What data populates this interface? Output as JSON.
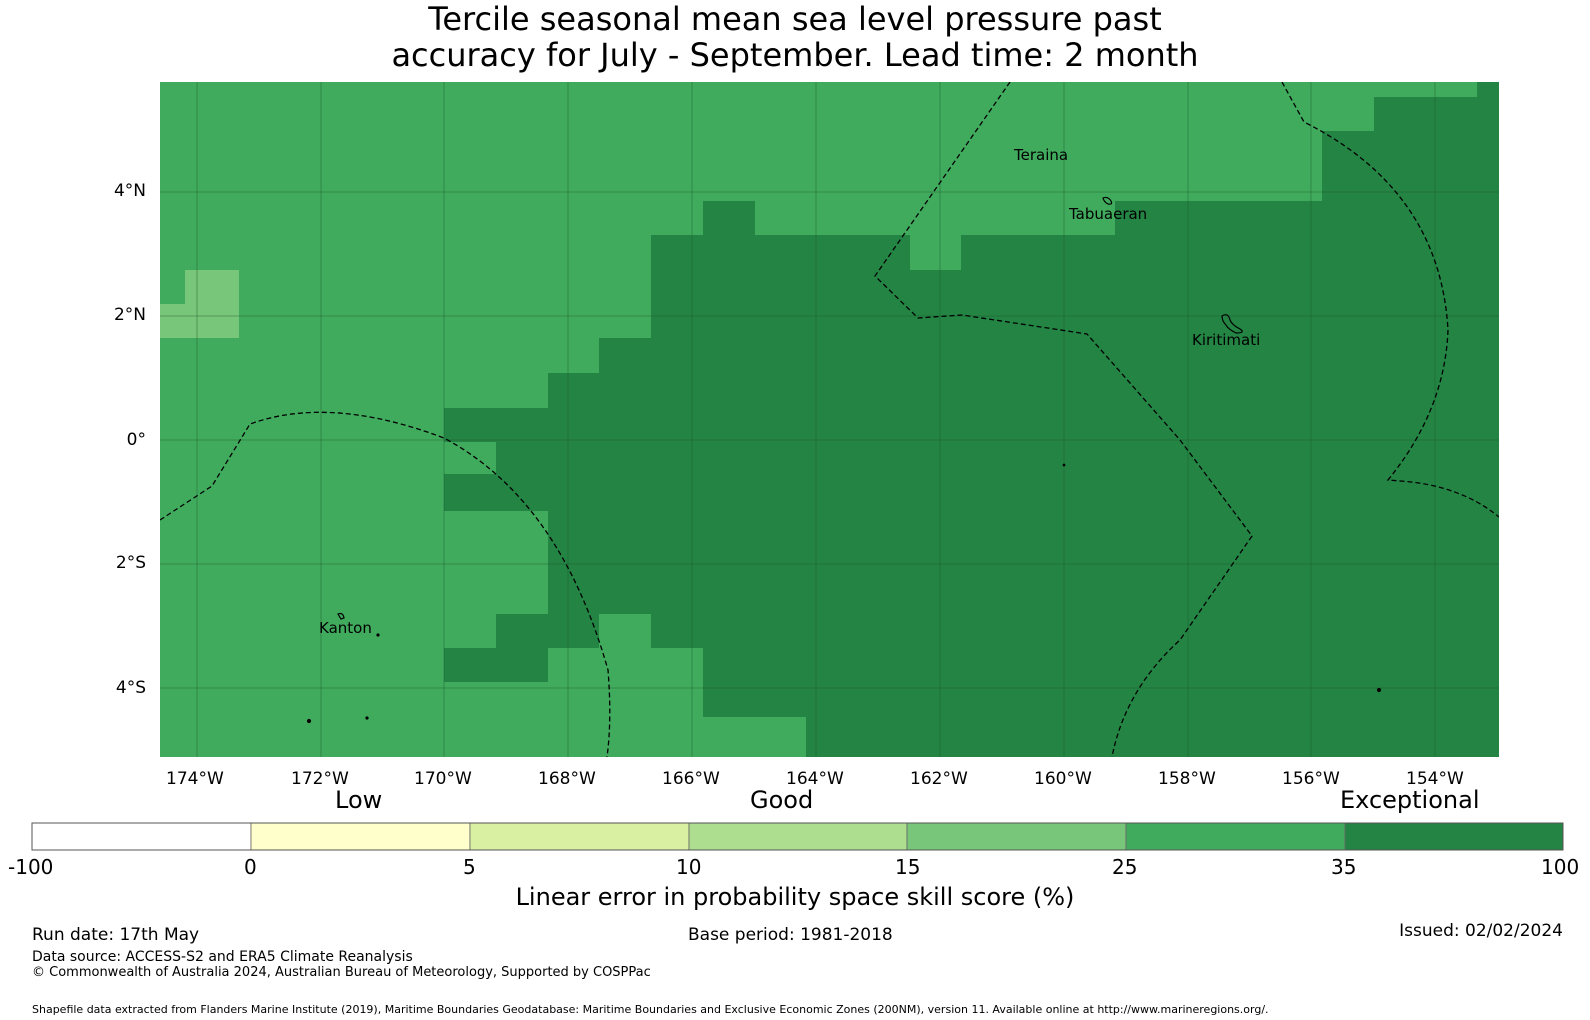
{
  "title_line1": "Tercile seasonal mean sea level pressure past",
  "title_line2": "accuracy for July - September. Lead time: 2 month",
  "map": {
    "lat_labels": [
      "4°N",
      "2°N",
      "0°",
      "2°S",
      "4°S"
    ],
    "lon_labels": [
      "174°W",
      "172°W",
      "170°W",
      "168°W",
      "166°W",
      "164°W",
      "162°W",
      "160°W",
      "158°W",
      "156°W",
      "154°W"
    ],
    "places": [
      "Teraina",
      "Tabuaeran",
      "Kiritimati",
      "Kanton"
    ],
    "fill_colors": {
      "35-100": "#228540",
      "25-35": "#41ab5d",
      "15-25": "#78c679"
    }
  },
  "legend": {
    "categories": [
      "Low",
      "Good",
      "Exceptional"
    ],
    "ticks": [
      "-100",
      "0",
      "5",
      "10",
      "15",
      "25",
      "35",
      "100"
    ],
    "colors": [
      "#ffffff",
      "#ffffcc",
      "#d9f0a3",
      "#addd8e",
      "#78c679",
      "#41ab5d",
      "#238443"
    ],
    "label": "Linear error in probability space skill score (%)"
  },
  "footer": {
    "run_date": "Run date: 17th May",
    "base_period": "Base period: 1981-2018",
    "issued": "Issued: 02/02/2024",
    "data_source": "Data source: ACCESS-S2 and ERA5 Climate Reanalysis",
    "copyright": "© Commonwealth of Australia 2024, Australian Bureau of Meteorology, Supported by COSPPac",
    "shapefile": "Shapefile data extracted from Flanders Marine Institute (2019), Maritime Boundaries Geodatabase: Maritime Boundaries and Exclusive Economic Zones (200NM), version 11. Available online at http://www.marineregions.org/."
  }
}
